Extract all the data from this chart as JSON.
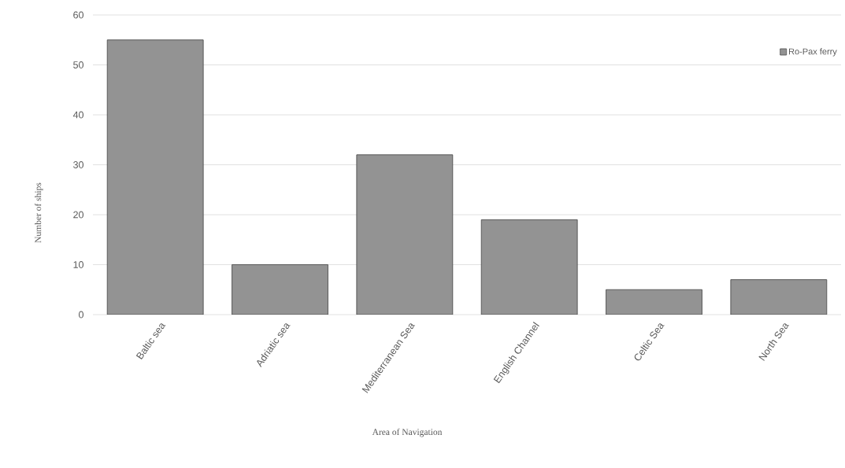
{
  "chart_data": {
    "type": "bar",
    "xlabel": "Area of Navigation",
    "ylabel": "Number of ships",
    "categories": [
      "Baltic sea",
      "Adriatic sea",
      "Mediterranean Sea",
      "English Channel",
      "Celtic Sea",
      "North Sea"
    ],
    "series": [
      {
        "name": "Ro-Pax ferry",
        "color": "#939393",
        "values": [
          55,
          10,
          32,
          19,
          5,
          7
        ]
      }
    ],
    "ylim": [
      0,
      60
    ],
    "yticks": [
      0,
      10,
      20,
      30,
      40,
      50,
      60
    ],
    "grid": "y",
    "legend": "top right"
  }
}
